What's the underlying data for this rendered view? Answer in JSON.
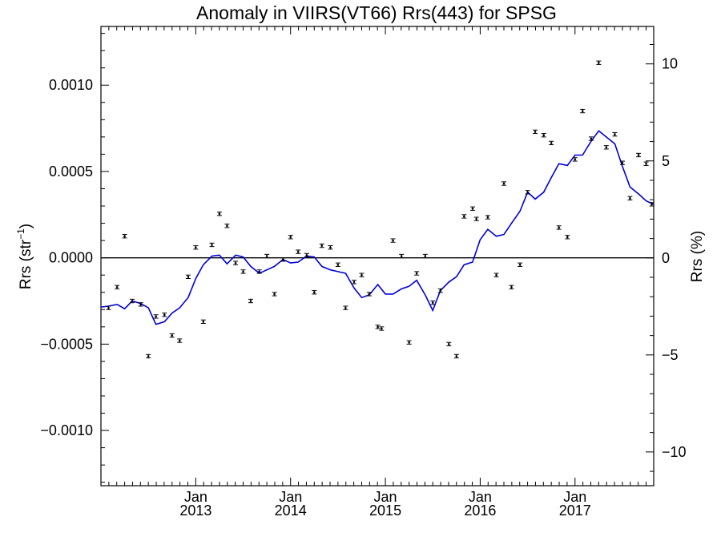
{
  "chart_data": {
    "type": "scatter",
    "title": "Anomaly in VIIRS(VT66) Rrs(443) for SPSG",
    "ylabel_left": "Rrs (str",
    "ylabel_left_sup": "−1",
    "ylabel_left_end": ")",
    "ylabel_right": "Rrs (%)",
    "xlim": [
      2012.0,
      2017.83
    ],
    "ylim": [
      -0.00132,
      0.00134
    ],
    "y2lim": [
      -11.74,
      11.93
    ],
    "x_ticks": [
      {
        "value": 2013.0,
        "label1": "Jan",
        "label2": "2013"
      },
      {
        "value": 2014.0,
        "label1": "Jan",
        "label2": "2014"
      },
      {
        "value": 2015.0,
        "label1": "Jan",
        "label2": "2015"
      },
      {
        "value": 2016.0,
        "label1": "Jan",
        "label2": "2016"
      },
      {
        "value": 2017.0,
        "label1": "Jan",
        "label2": "2017"
      }
    ],
    "y_ticks": [
      {
        "value": 0.001,
        "label": "0.0010"
      },
      {
        "value": 0.0005,
        "label": "0.0005"
      },
      {
        "value": 0.0,
        "label": "0.0000"
      },
      {
        "value": -0.0005,
        "label": "−0.0005"
      },
      {
        "value": -0.001,
        "label": "−0.0010"
      }
    ],
    "y2_ticks": [
      {
        "value": 10,
        "label": "10"
      },
      {
        "value": 5,
        "label": "5"
      },
      {
        "value": 0,
        "label": "0"
      },
      {
        "value": -5,
        "label": "−5"
      },
      {
        "value": -10,
        "label": "−10"
      }
    ],
    "zero_line": 0,
    "series": [
      {
        "type": "scatter",
        "color": "#000000",
        "error_bar": 1e-05,
        "points": [
          [
            2012.08,
            -0.00029
          ],
          [
            2012.17,
            -0.00017
          ],
          [
            2012.25,
            0.000125
          ],
          [
            2012.33,
            -0.00025
          ],
          [
            2012.42,
            -0.00027
          ],
          [
            2012.5,
            -0.00057
          ],
          [
            2012.58,
            -0.00034
          ],
          [
            2012.67,
            -0.00033
          ],
          [
            2012.75,
            -0.00045
          ],
          [
            2012.83,
            -0.00048
          ],
          [
            2012.92,
            -0.00011
          ],
          [
            2013.0,
            6e-05
          ],
          [
            2013.08,
            -0.00037
          ],
          [
            2013.17,
            7.5e-05
          ],
          [
            2013.25,
            0.000255
          ],
          [
            2013.33,
            0.000185
          ],
          [
            2013.42,
            -3e-05
          ],
          [
            2013.5,
            -8e-05
          ],
          [
            2013.58,
            -0.00025
          ],
          [
            2013.67,
            -8e-05
          ],
          [
            2013.75,
            1e-05
          ],
          [
            2013.83,
            -0.00021
          ],
          [
            2013.92,
            -1e-05
          ],
          [
            2014.0,
            0.00012
          ],
          [
            2014.08,
            3.5e-05
          ],
          [
            2014.17,
            1.5e-05
          ],
          [
            2014.25,
            -0.0002
          ],
          [
            2014.33,
            7e-05
          ],
          [
            2014.42,
            6e-05
          ],
          [
            2014.5,
            -4e-05
          ],
          [
            2014.58,
            -0.00029
          ],
          [
            2014.67,
            -0.00014
          ],
          [
            2014.75,
            -0.0001
          ],
          [
            2014.83,
            -0.00021
          ],
          [
            2014.92,
            -0.0004
          ],
          [
            2014.96,
            -0.00041
          ],
          [
            2015.08,
            0.0001
          ],
          [
            2015.17,
            1e-05
          ],
          [
            2015.25,
            -0.00049
          ],
          [
            2015.33,
            -9e-05
          ],
          [
            2015.42,
            1e-05
          ],
          [
            2015.5,
            -0.00026
          ],
          [
            2015.58,
            -0.00019
          ],
          [
            2015.67,
            -0.0005
          ],
          [
            2015.75,
            -0.00057
          ],
          [
            2015.83,
            0.00024
          ],
          [
            2015.92,
            0.000285
          ],
          [
            2015.96,
            0.000225
          ],
          [
            2016.08,
            0.000235
          ],
          [
            2016.17,
            -0.0001
          ],
          [
            2016.25,
            0.00043
          ],
          [
            2016.33,
            -0.00017
          ],
          [
            2016.42,
            -4e-05
          ],
          [
            2016.5,
            0.00038
          ],
          [
            2016.58,
            0.00073
          ],
          [
            2016.67,
            0.00071
          ],
          [
            2016.75,
            0.000665
          ],
          [
            2016.83,
            0.000175
          ],
          [
            2016.92,
            0.00012
          ],
          [
            2017.0,
            0.00057
          ],
          [
            2017.08,
            0.00085
          ],
          [
            2017.17,
            0.00069
          ],
          [
            2017.25,
            0.00113
          ],
          [
            2017.33,
            0.00064
          ],
          [
            2017.42,
            0.000715
          ],
          [
            2017.5,
            0.00055
          ],
          [
            2017.58,
            0.000345
          ],
          [
            2017.67,
            0.000595
          ],
          [
            2017.75,
            0.000545
          ],
          [
            2017.81,
            0.00031
          ]
        ]
      },
      {
        "type": "line",
        "color": "#0000dd",
        "points": [
          [
            2012.0,
            -0.000285
          ],
          [
            2012.08,
            -0.00028
          ],
          [
            2012.17,
            -0.00027
          ],
          [
            2012.25,
            -0.000295
          ],
          [
            2012.33,
            -0.00025
          ],
          [
            2012.42,
            -0.000265
          ],
          [
            2012.5,
            -0.00029
          ],
          [
            2012.58,
            -0.000385
          ],
          [
            2012.67,
            -0.00037
          ],
          [
            2012.75,
            -0.00032
          ],
          [
            2012.83,
            -0.00029
          ],
          [
            2012.92,
            -0.00023
          ],
          [
            2013.0,
            -0.00012
          ],
          [
            2013.08,
            -4e-05
          ],
          [
            2013.17,
            1e-05
          ],
          [
            2013.25,
            1.5e-05
          ],
          [
            2013.33,
            -3.5e-05
          ],
          [
            2013.42,
            1.5e-05
          ],
          [
            2013.5,
            5e-06
          ],
          [
            2013.58,
            -5e-05
          ],
          [
            2013.67,
            -9e-05
          ],
          [
            2013.75,
            -7e-05
          ],
          [
            2013.83,
            -5e-05
          ],
          [
            2013.92,
            -1e-05
          ],
          [
            2014.0,
            -3e-05
          ],
          [
            2014.08,
            -2.5e-05
          ],
          [
            2014.17,
            1e-05
          ],
          [
            2014.25,
            5e-06
          ],
          [
            2014.33,
            -5e-05
          ],
          [
            2014.42,
            -7e-05
          ],
          [
            2014.5,
            -8e-05
          ],
          [
            2014.58,
            -9e-05
          ],
          [
            2014.67,
            -0.000175
          ],
          [
            2014.75,
            -0.00023
          ],
          [
            2014.83,
            -0.000215
          ],
          [
            2014.92,
            -0.000155
          ],
          [
            2015.0,
            -0.00021
          ],
          [
            2015.08,
            -0.00021
          ],
          [
            2015.17,
            -0.00018
          ],
          [
            2015.25,
            -0.000165
          ],
          [
            2015.33,
            -0.00013
          ],
          [
            2015.42,
            -0.000215
          ],
          [
            2015.5,
            -0.000305
          ],
          [
            2015.58,
            -0.00019
          ],
          [
            2015.67,
            -0.00014
          ],
          [
            2015.75,
            -0.00011
          ],
          [
            2015.83,
            -4e-05
          ],
          [
            2015.92,
            -2.5e-05
          ],
          [
            2016.0,
            0.000105
          ],
          [
            2016.08,
            0.000165
          ],
          [
            2016.17,
            0.000125
          ],
          [
            2016.25,
            0.000135
          ],
          [
            2016.33,
            0.0002
          ],
          [
            2016.42,
            0.00027
          ],
          [
            2016.5,
            0.00038
          ],
          [
            2016.58,
            0.00034
          ],
          [
            2016.67,
            0.00038
          ],
          [
            2016.75,
            0.000465
          ],
          [
            2016.83,
            0.000545
          ],
          [
            2016.92,
            0.000535
          ],
          [
            2017.0,
            0.000595
          ],
          [
            2017.08,
            0.000595
          ],
          [
            2017.17,
            0.000675
          ],
          [
            2017.25,
            0.000735
          ],
          [
            2017.33,
            0.0007
          ],
          [
            2017.42,
            0.00066
          ],
          [
            2017.5,
            0.00053
          ],
          [
            2017.58,
            0.00041
          ],
          [
            2017.67,
            0.00037
          ],
          [
            2017.75,
            0.00033
          ],
          [
            2017.83,
            0.00031
          ]
        ]
      }
    ]
  }
}
